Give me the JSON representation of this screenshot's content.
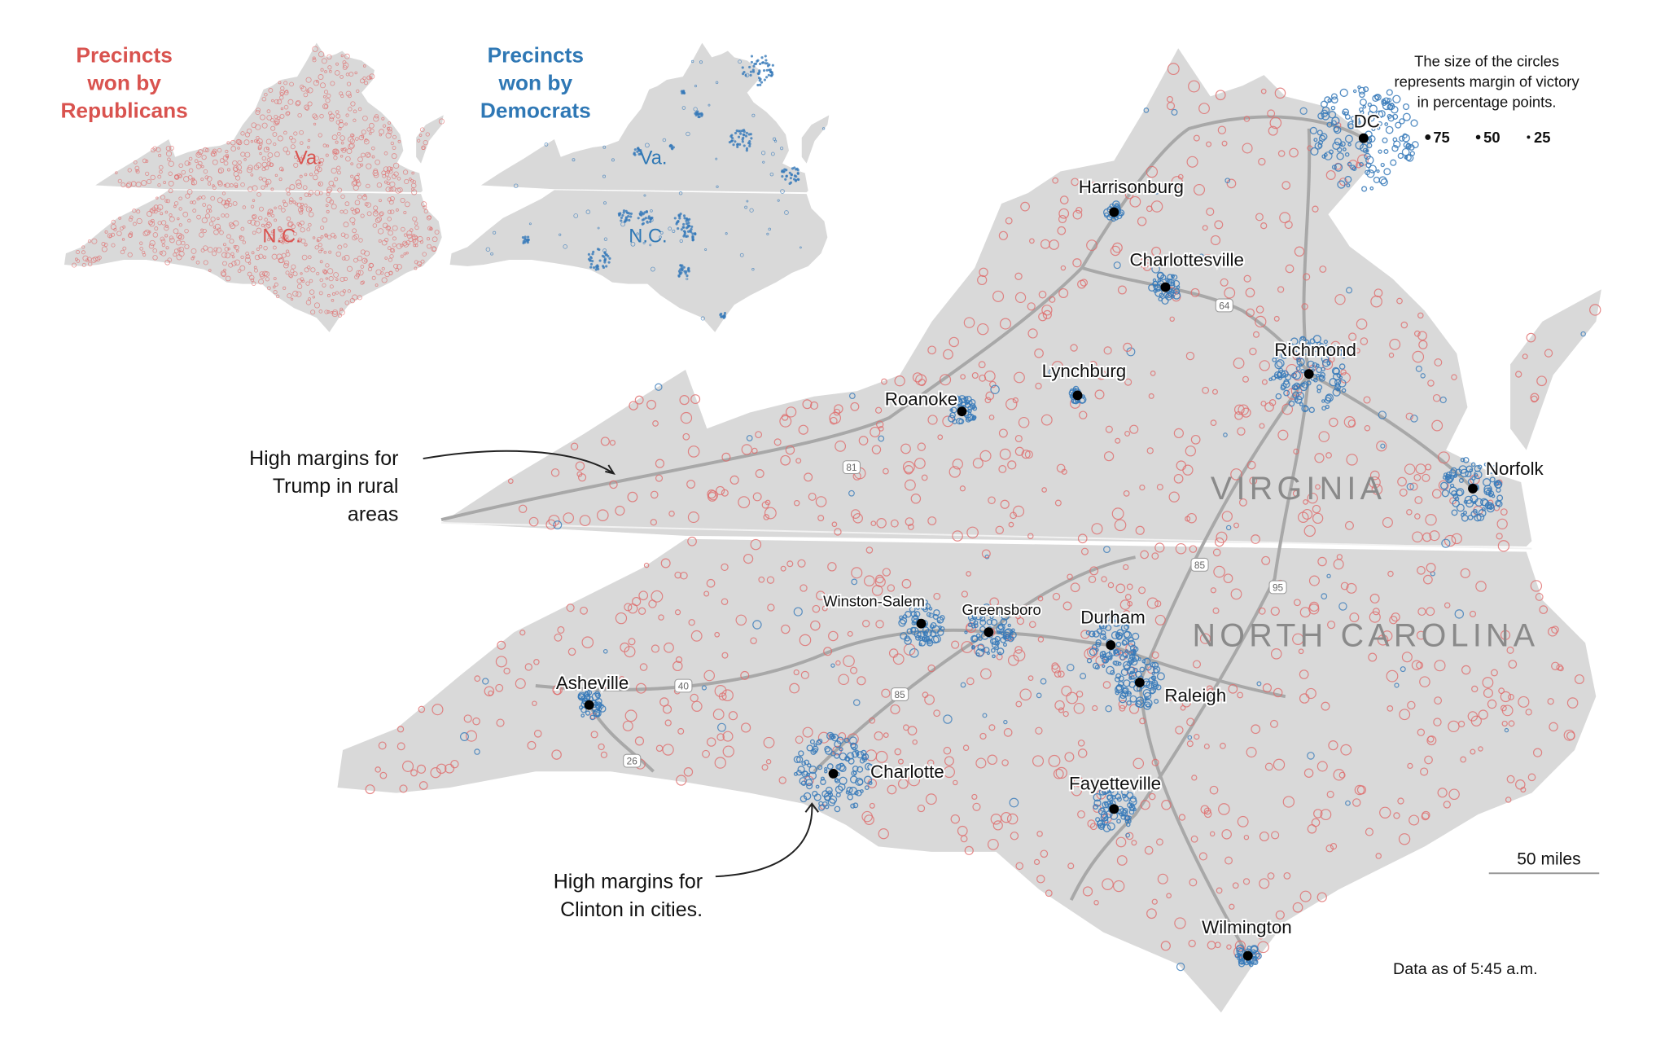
{
  "insets": [
    {
      "title_lines": [
        "Precincts",
        "won by",
        "Republicans"
      ],
      "state_labels": [
        "Va.",
        "N.C."
      ]
    },
    {
      "title_lines": [
        "Precincts",
        "won by",
        "Democrats"
      ],
      "state_labels": [
        "Va.",
        "N.C."
      ]
    }
  ],
  "legend": {
    "lines": [
      "The size of the circles",
      "represents margin of victory",
      "in percentage points."
    ],
    "sizes": [
      75,
      50,
      25
    ]
  },
  "states": [
    "VIRGINIA",
    "NORTH CAROLINA"
  ],
  "cities": [
    "DC",
    "Harrisonburg",
    "Charlottesville",
    "Richmond",
    "Lynchburg",
    "Roanoke",
    "Norfolk",
    "Winston-Salem",
    "Greensboro",
    "Durham",
    "Raleigh",
    "Asheville",
    "Charlotte",
    "Fayetteville",
    "Wilmington"
  ],
  "highways": [
    "81",
    "64",
    "85",
    "95",
    "40",
    "85",
    "26"
  ],
  "annotations": [
    {
      "lines": [
        "High margins for",
        "Trump in rural",
        "areas"
      ]
    },
    {
      "lines": [
        "High margins for",
        "Clinton in cities."
      ]
    }
  ],
  "scale_label": "50 miles",
  "note": "Data as of 5:45 a.m."
}
